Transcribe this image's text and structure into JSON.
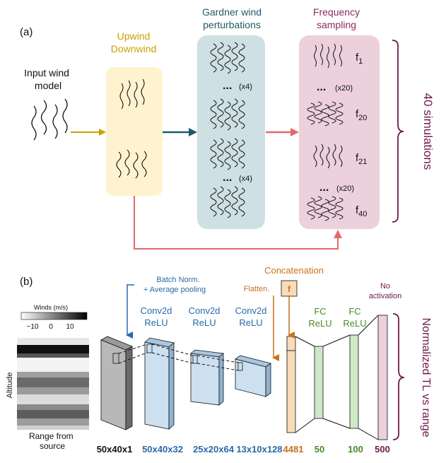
{
  "panel_a": {
    "label": "(a)",
    "input": {
      "line1": "Input wind",
      "line2": "model"
    },
    "updown": {
      "line1": "Upwind",
      "line2": "Downwind"
    },
    "gardner": {
      "line1": "Gardner wind",
      "line2": "perturbations",
      "ellipsis": "...",
      "mult_top": "(x4)",
      "mult_bottom": "(x4)"
    },
    "freq": {
      "line1": "Frequency",
      "line2": "sampling",
      "ellipsis": "...",
      "mult_top": "(x20)",
      "mult_bottom": "(x20)",
      "f1": "f",
      "f1_sub": "1",
      "f20": "f",
      "f20_sub": "20",
      "f21": "f",
      "f21_sub": "21",
      "f40": "f",
      "f40_sub": "40"
    },
    "side_label": "40 simulations",
    "colors": {
      "upwind": "#c8a200",
      "gardner": "#1f5a6a",
      "freq": "#8b2a5c",
      "arrow_teal": "#1f5a6a",
      "arrow_red": "#e06a6a",
      "box_yellow": "#fff3cf",
      "box_blue": "#cfe0e4",
      "box_pink": "#ecd0dc",
      "brace": "#6e1a4a"
    }
  },
  "panel_b": {
    "label": "(b)",
    "colorbar": {
      "title": "Winds (m/s)",
      "tick_min": "−10",
      "tick_mid": "0",
      "tick_max": "10"
    },
    "altitude": "Altitude",
    "range_from": {
      "line1": "Range from",
      "line2": "source"
    },
    "batch_norm": {
      "line1": "Batch Norm.",
      "line2": "+ Average pooling"
    },
    "conv1": {
      "line1": "Conv2d",
      "line2": "ReLU"
    },
    "conv2": {
      "line1": "Conv2d",
      "line2": "ReLU"
    },
    "conv3": {
      "line1": "Conv2d",
      "line2": "ReLU"
    },
    "flatten": "Flatten.",
    "concatenation": "Concatenation",
    "f_box": "f",
    "fc1": {
      "line1": "FC",
      "line2": "ReLU"
    },
    "fc2": {
      "line1": "FC",
      "line2": "ReLU"
    },
    "no_activation": {
      "line1": "No",
      "line2": "activation"
    },
    "side_label": "Normalized TL vs range",
    "dims": {
      "d0": "50x40x1",
      "d1": "50x40x32",
      "d2": "25x20x64",
      "d3": "13x10x128",
      "d4": "4481",
      "d5": "50",
      "d6": "100",
      "d7": "500"
    },
    "colors": {
      "blue": "#2a6aa8",
      "orange": "#c8701a",
      "green": "#4a8a2a",
      "purple": "#6e1a4a",
      "black": "#111111"
    }
  }
}
